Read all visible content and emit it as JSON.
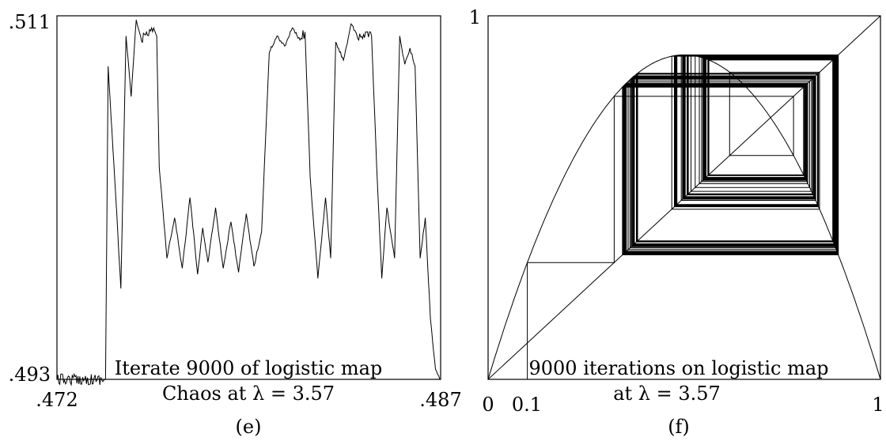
{
  "chart_data": [
    {
      "type": "line",
      "panel_label": "(e)",
      "caption_line1": "Iterate 9000 of logistic map",
      "caption_line2": "Chaos at λ = 3.57",
      "x_ticks": [
        ".472",
        ".487"
      ],
      "y_ticks": [
        ".511",
        ".493"
      ],
      "xlim": [
        0.472,
        0.487
      ],
      "ylim": [
        0.493,
        0.511
      ],
      "series": [
        {
          "x": [
            0.472,
            0.4739,
            0.474,
            0.4743,
            0.4745,
            0.4747,
            0.4749,
            0.4751,
            0.4753,
            0.4755,
            0.4757,
            0.4759,
            0.476,
            0.4763,
            0.4766,
            0.4769,
            0.4772,
            0.4775,
            0.4777,
            0.4779,
            0.4782,
            0.4785,
            0.4788,
            0.4791,
            0.4794,
            0.4797,
            0.48,
            0.4803,
            0.4806,
            0.4809,
            0.4812,
            0.4815,
            0.4817,
            0.4819,
            0.4822,
            0.4825,
            0.4827,
            0.4829,
            0.4832,
            0.4835,
            0.4838,
            0.4841,
            0.4843,
            0.4845,
            0.4847,
            0.4849,
            0.4852,
            0.4854,
            0.4856,
            0.4858,
            0.486,
            0.4862,
            0.4864,
            0.4866,
            0.4868,
            0.487
          ],
          "y": [
            0.493,
            0.493,
            0.5085,
            0.502,
            0.4975,
            0.51,
            0.507,
            0.5108,
            0.5098,
            0.5102,
            0.5104,
            0.51,
            0.5035,
            0.499,
            0.501,
            0.4985,
            0.502,
            0.4982,
            0.5005,
            0.4988,
            0.5015,
            0.4985,
            0.5008,
            0.4983,
            0.5012,
            0.4986,
            0.5003,
            0.5092,
            0.51,
            0.5095,
            0.5104,
            0.5098,
            0.5102,
            0.503,
            0.498,
            0.502,
            0.499,
            0.5097,
            0.5088,
            0.5106,
            0.5098,
            0.5102,
            0.51,
            0.5035,
            0.498,
            0.5015,
            0.499,
            0.51,
            0.5086,
            0.5094,
            0.5085,
            0.499,
            0.501,
            0.496,
            0.4935,
            0.493
          ]
        }
      ]
    },
    {
      "type": "line",
      "panel_label": "(f)",
      "caption_line1": "9000 iterations on logistic map",
      "caption_line2": "at λ = 3.57",
      "x_ticks": [
        "0",
        "0.1",
        "1"
      ],
      "y_ticks": [
        "1"
      ],
      "xlim": [
        0,
        1
      ],
      "ylim": [
        0,
        1
      ],
      "lambda": 3.57,
      "x0": 0.1,
      "iterations": 9000,
      "series": [
        {
          "name": "",
          "x": [
            0,
            1
          ],
          "y": [
            0,
            1
          ]
        }
      ]
    }
  ]
}
